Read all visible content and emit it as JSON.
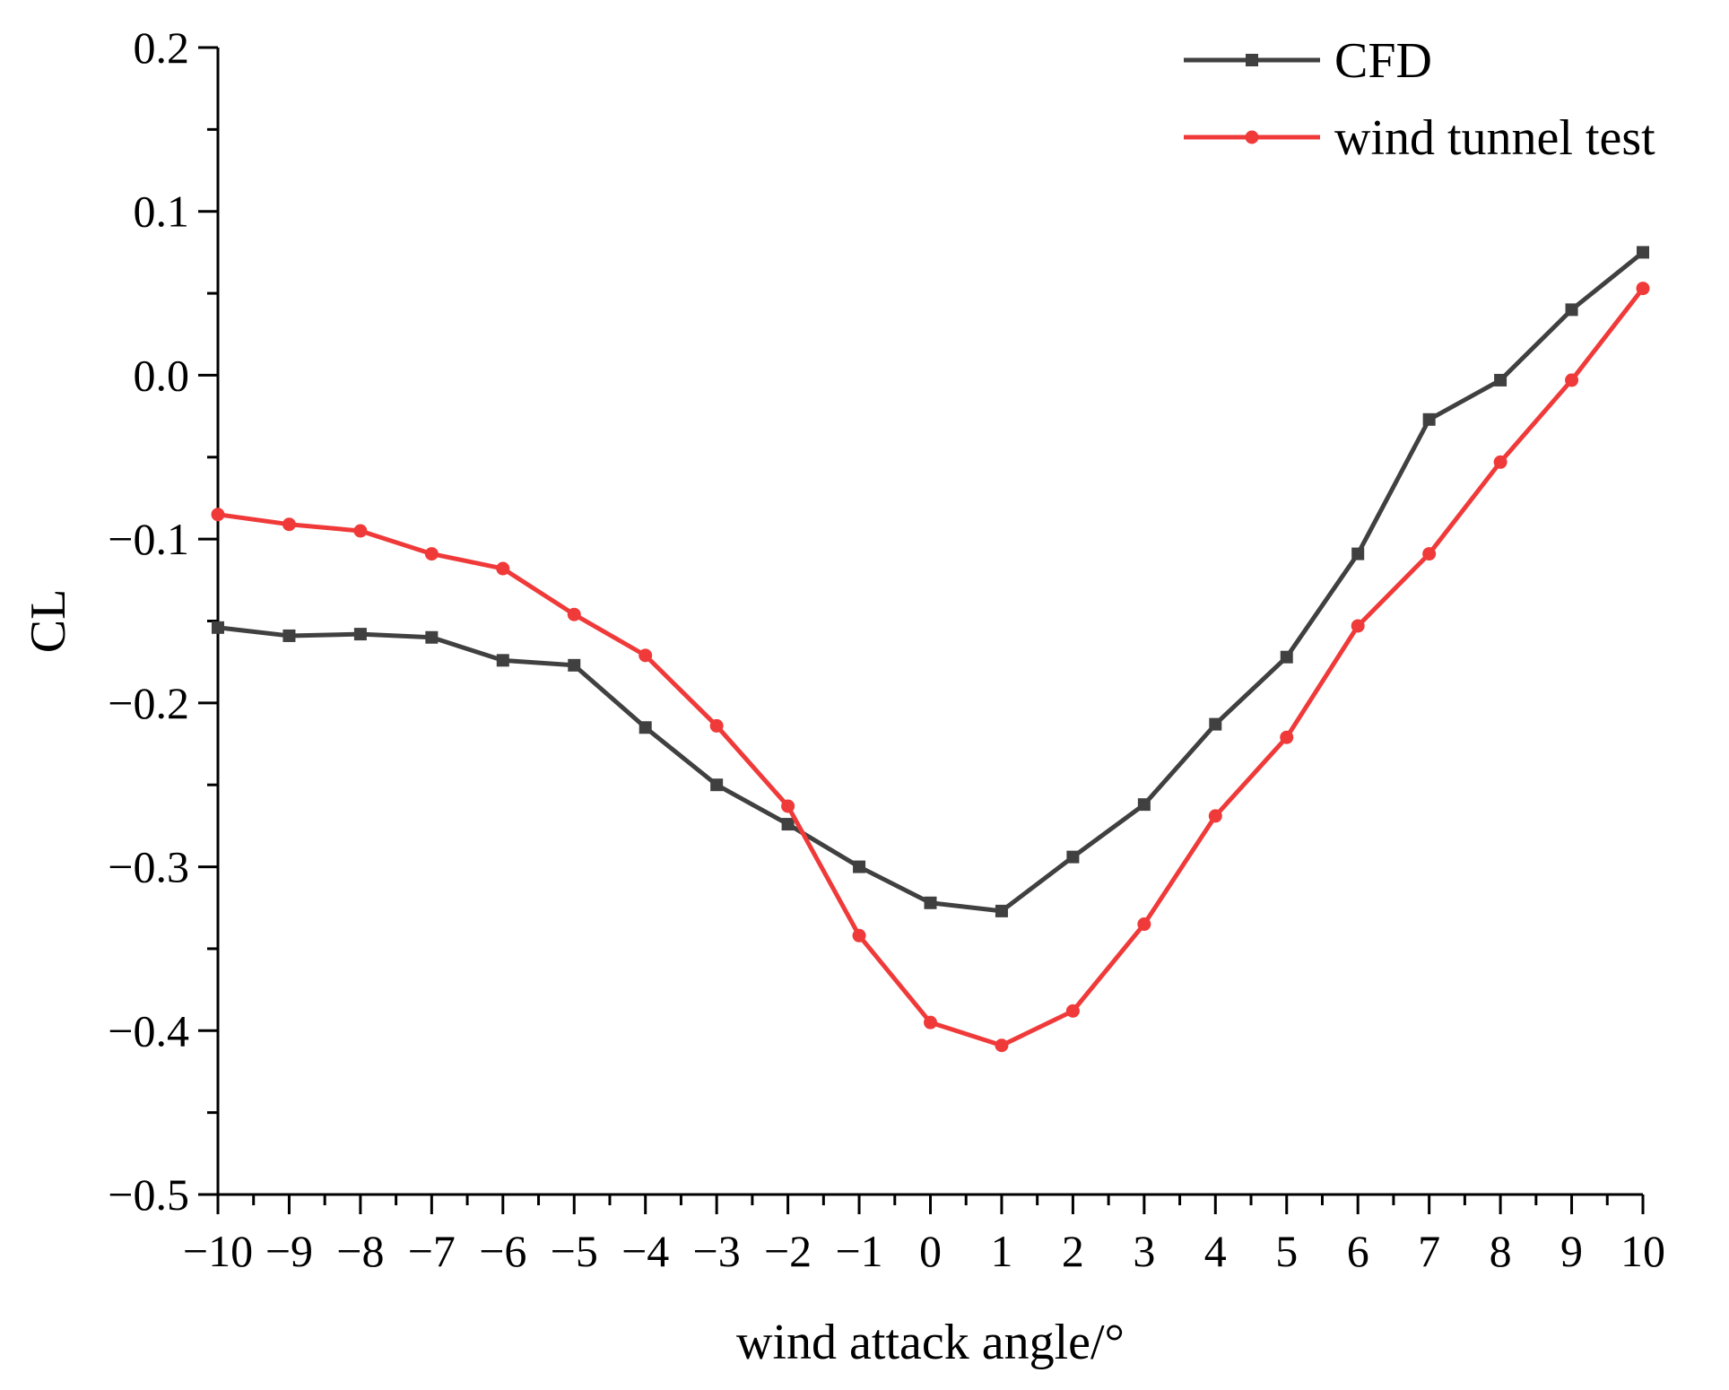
{
  "chart_data": {
    "type": "line",
    "title": "",
    "xlabel": "wind attack angle/°",
    "ylabel": "CL",
    "xlim": [
      -10,
      10
    ],
    "ylim": [
      -0.5,
      0.2
    ],
    "x": [
      -10,
      -9,
      -8,
      -7,
      -6,
      -5,
      -4,
      -3,
      -2,
      -1,
      0,
      1,
      2,
      3,
      4,
      5,
      6,
      7,
      8,
      9,
      10
    ],
    "x_tick_labels": [
      "−10",
      "−9",
      "−8",
      "−7",
      "−6",
      "−5",
      "−4",
      "−3",
      "−2",
      "−1",
      "0",
      "1",
      "2",
      "3",
      "4",
      "5",
      "6",
      "7",
      "8",
      "9",
      "10"
    ],
    "y_ticks": [
      0.2,
      0.1,
      0.0,
      -0.1,
      -0.2,
      -0.3,
      -0.4,
      -0.5
    ],
    "y_tick_labels": [
      "0.2",
      "0.1",
      "0.0",
      "−0.1",
      "−0.2",
      "−0.3",
      "−0.4",
      "−0.5"
    ],
    "grid": false,
    "legend_position": "top-right",
    "series": [
      {
        "name": "CFD",
        "color": "#404040",
        "marker": "square",
        "values": [
          -0.154,
          -0.159,
          -0.158,
          -0.16,
          -0.174,
          -0.177,
          -0.215,
          -0.25,
          -0.274,
          -0.3,
          -0.322,
          -0.327,
          -0.294,
          -0.262,
          -0.213,
          -0.172,
          -0.109,
          -0.027,
          -0.003,
          0.04,
          0.075
        ]
      },
      {
        "name": "wind tunnel test",
        "color": "#f03a3a",
        "marker": "circle",
        "values": [
          -0.085,
          -0.091,
          -0.095,
          -0.109,
          -0.118,
          -0.146,
          -0.171,
          -0.214,
          -0.263,
          -0.342,
          -0.395,
          -0.409,
          -0.388,
          -0.335,
          -0.269,
          -0.221,
          -0.153,
          -0.109,
          -0.053,
          -0.003,
          0.053
        ]
      }
    ]
  }
}
